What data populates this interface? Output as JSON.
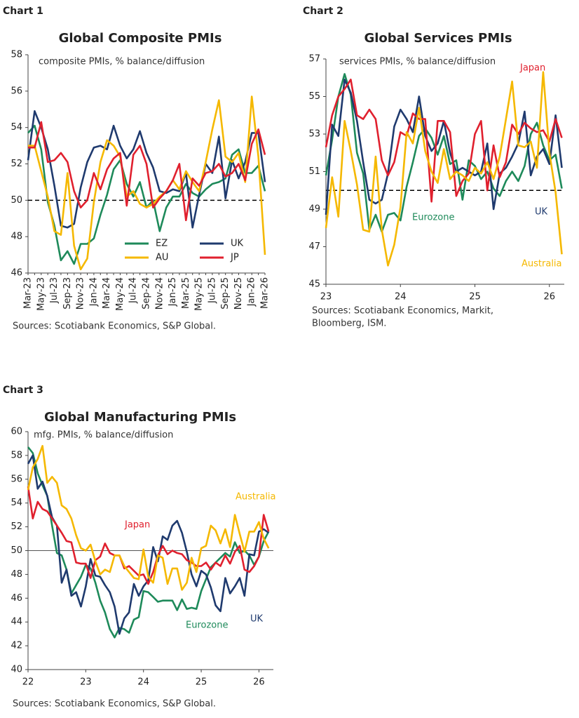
{
  "chart_data": [
    {
      "type": "line",
      "label": "Chart 1",
      "title": "Global Composite PMIs",
      "subtitle": "composite PMIs, % balance/diffusion",
      "source": [
        "Sources: Scotiabank Economics, S&P Global."
      ],
      "categories": [
        "Mar-23",
        null,
        "May-23",
        null,
        "Jul-23",
        null,
        "Sep-23",
        null,
        "Nov-23",
        null,
        "Jan-24",
        null,
        "Mar-24",
        null,
        "May-24",
        null,
        "Jul-24",
        null,
        "Sep-24",
        null,
        "Nov-24",
        null,
        "Jan-25",
        null,
        "Mar-25",
        null,
        "May-25",
        null,
        "Jul-25",
        null,
        "Sep-25",
        null,
        "Nov-25",
        null,
        "Jan-26",
        null,
        "Mar-26"
      ],
      "ylim": [
        46,
        58
      ],
      "yticks": [
        46,
        48,
        50,
        52,
        54,
        56,
        58
      ],
      "reference_line": 50,
      "reference_dashed": true,
      "legend": "lower center",
      "series": [
        {
          "name": "EZ",
          "color": "#1e8a5a",
          "values": [
            53.7,
            54.1,
            52.8,
            49.9,
            48.6,
            46.7,
            47.2,
            46.5,
            47.6,
            47.6,
            47.9,
            49.2,
            50.3,
            51.7,
            52.2,
            50.9,
            50.2,
            51.0,
            49.6,
            50.0,
            48.3,
            49.6,
            50.2,
            50.2,
            50.9,
            50.4,
            50.2,
            50.6,
            50.9,
            51.0,
            51.2,
            52.5,
            52.8,
            51.5,
            51.5,
            51.9,
            50.5
          ]
        },
        {
          "name": "UK",
          "color": "#1f3a6e",
          "values": [
            52.2,
            54.9,
            54.0,
            52.8,
            50.8,
            48.6,
            48.5,
            48.7,
            50.7,
            52.1,
            52.9,
            53.0,
            52.8,
            54.1,
            53.0,
            52.3,
            52.8,
            53.8,
            52.6,
            51.8,
            50.5,
            50.4,
            50.6,
            50.5,
            51.5,
            48.5,
            50.3,
            52.0,
            51.5,
            53.5,
            50.1,
            52.2,
            51.2,
            52.1,
            53.7,
            53.7,
            51.0
          ]
        },
        {
          "name": "AU",
          "color": "#f5b800",
          "values": [
            53.0,
            53.0,
            51.6,
            50.2,
            48.3,
            48.1,
            51.5,
            47.5,
            46.2,
            46.8,
            49.9,
            52.1,
            53.3,
            53.0,
            52.4,
            50.2,
            50.5,
            49.8,
            49.6,
            49.8,
            50.2,
            50.5,
            51.1,
            50.6,
            51.6,
            51.0,
            50.5,
            52.1,
            53.9,
            55.5,
            52.4,
            52.1,
            52.6,
            51.0,
            55.7,
            52.4,
            47.0
          ]
        },
        {
          "name": "JP",
          "color": "#e0202e",
          "values": [
            52.9,
            52.9,
            54.3,
            52.1,
            52.2,
            52.6,
            52.1,
            50.5,
            49.6,
            50.0,
            51.5,
            50.6,
            51.7,
            52.3,
            52.6,
            49.7,
            52.5,
            53.0,
            52.0,
            49.6,
            50.1,
            50.5,
            51.1,
            52.0,
            48.9,
            51.2,
            50.8,
            51.5,
            51.6,
            52.0,
            51.3,
            51.5,
            52.0,
            51.1,
            53.1,
            53.9,
            52.5
          ]
        }
      ]
    },
    {
      "type": "line",
      "label": "Chart 2",
      "title": "Global Services PMIs",
      "subtitle": "services PMIs, % balance/diffusion",
      "source": [
        "Sources: Scotiabank Economics, Markit,",
        "Bloomberg, ISM."
      ],
      "x": [
        23,
        23.083,
        23.167,
        23.25,
        23.333,
        23.417,
        23.5,
        23.583,
        23.667,
        23.75,
        23.833,
        23.917,
        24,
        24.083,
        24.167,
        24.25,
        24.333,
        24.417,
        24.5,
        24.583,
        24.667,
        24.75,
        24.833,
        24.917,
        25,
        25.083,
        25.167,
        25.25,
        25.333,
        25.417,
        25.5,
        25.583,
        25.667,
        25.75,
        25.833,
        25.917,
        26,
        26.083,
        26.167
      ],
      "xlim": [
        23,
        26.2
      ],
      "xticks": [
        23,
        24,
        25,
        26
      ],
      "ylim": [
        45,
        57
      ],
      "yticks": [
        45,
        47,
        49,
        51,
        53,
        55,
        57
      ],
      "reference_line": 50,
      "reference_dashed": true,
      "series": [
        {
          "name": "Eurozone",
          "color": "#1e8a5a",
          "values": [
            50.8,
            52.7,
            55.0,
            56.2,
            55.1,
            52.0,
            50.9,
            47.9,
            48.7,
            47.8,
            48.7,
            48.8,
            48.4,
            50.2,
            51.5,
            52.9,
            53.3,
            52.8,
            51.9,
            52.9,
            51.4,
            51.6,
            49.5,
            51.6,
            51.3,
            50.6,
            51.0,
            50.1,
            49.7,
            50.5,
            51.0,
            50.5,
            51.3,
            53.0,
            53.6,
            52.4,
            51.6,
            51.9,
            50.1
          ]
        },
        {
          "name": "UK",
          "color": "#1f3a6e",
          "values": [
            48.7,
            53.5,
            52.9,
            55.9,
            55.2,
            53.7,
            51.5,
            49.5,
            49.3,
            49.5,
            50.9,
            53.4,
            54.3,
            53.8,
            53.1,
            55.0,
            52.9,
            52.1,
            52.5,
            53.7,
            52.0,
            51.0,
            51.2,
            51.0,
            50.8,
            51.0,
            52.5,
            49.0,
            50.9,
            51.2,
            51.8,
            52.5,
            54.2,
            50.8,
            51.8,
            52.2,
            51.4,
            54.0,
            51.2
          ]
        },
        {
          "name": "Japan",
          "color": "#e0202e",
          "values": [
            52.3,
            54.0,
            55.0,
            55.4,
            55.9,
            54.0,
            53.8,
            54.3,
            53.8,
            51.6,
            50.8,
            51.5,
            53.1,
            52.9,
            54.1,
            53.8,
            53.8,
            49.4,
            53.7,
            53.7,
            53.1,
            49.7,
            50.5,
            50.9,
            53.0,
            53.7,
            50.0,
            52.4,
            50.7,
            51.5,
            53.5,
            53.0,
            53.6,
            53.3,
            53.1,
            53.2,
            52.6,
            53.8,
            52.8
          ]
        },
        {
          "name": "Australia",
          "color": "#f5b800",
          "values": [
            48.0,
            50.7,
            48.6,
            53.7,
            52.1,
            50.3,
            47.9,
            47.8,
            51.8,
            47.9,
            46.0,
            47.1,
            49.1,
            53.1,
            52.5,
            54.4,
            52.1,
            51.0,
            50.4,
            52.2,
            50.6,
            51.0,
            50.8,
            50.5,
            51.2,
            50.9,
            51.5,
            50.6,
            51.8,
            53.8,
            55.8,
            52.4,
            52.3,
            52.6,
            51.2,
            56.3,
            52.0,
            49.9,
            46.6
          ]
        }
      ]
    },
    {
      "type": "line",
      "label": "Chart 3",
      "title": "Global Manufacturing PMIs",
      "subtitle": "mfg. PMIs, % balance/diffusion",
      "source": [
        "Sources: Scotiabank Economics, S&P Global."
      ],
      "x": [
        22,
        22.083,
        22.167,
        22.25,
        22.333,
        22.417,
        22.5,
        22.583,
        22.667,
        22.75,
        22.833,
        22.917,
        23,
        23.083,
        23.167,
        23.25,
        23.333,
        23.417,
        23.5,
        23.583,
        23.667,
        23.75,
        23.833,
        23.917,
        24,
        24.083,
        24.167,
        24.25,
        24.333,
        24.417,
        24.5,
        24.583,
        24.667,
        24.75,
        24.833,
        24.917,
        25,
        25.083,
        25.167,
        25.25,
        25.333,
        25.417,
        25.5,
        25.583,
        25.667,
        25.75,
        25.833,
        25.917,
        26,
        26.083,
        26.167
      ],
      "xlim": [
        22,
        26.25
      ],
      "xticks": [
        22,
        23,
        24,
        25,
        26
      ],
      "ylim": [
        40,
        60
      ],
      "yticks": [
        40,
        42,
        44,
        46,
        48,
        50,
        52,
        54,
        56,
        58,
        60
      ],
      "reference_line": 50,
      "reference_dashed": false,
      "series": [
        {
          "name": "Eurozone",
          "color": "#1e8a5a",
          "values": [
            58.7,
            58.2,
            56.5,
            55.5,
            54.6,
            52.1,
            49.8,
            49.6,
            48.4,
            46.4,
            47.1,
            47.8,
            48.8,
            48.5,
            47.3,
            45.8,
            44.8,
            43.4,
            42.7,
            43.5,
            43.4,
            43.1,
            44.2,
            44.4,
            46.6,
            46.5,
            46.1,
            45.7,
            45.8,
            45.8,
            45.8,
            45.0,
            45.9,
            45.1,
            45.2,
            45.1,
            46.6,
            47.6,
            48.6,
            49.0,
            49.4,
            49.8,
            49.5,
            50.7,
            49.8,
            50.0,
            49.6,
            48.8,
            49.5,
            50.8,
            51.6
          ]
        },
        {
          "name": "UK",
          "color": "#1f3a6e",
          "values": [
            57.3,
            58.0,
            55.2,
            55.8,
            54.6,
            52.8,
            52.1,
            47.3,
            48.4,
            46.2,
            46.5,
            45.3,
            47.0,
            49.3,
            47.9,
            47.8,
            47.1,
            46.5,
            45.3,
            43.0,
            44.3,
            44.8,
            47.2,
            46.2,
            47.0,
            47.5,
            50.3,
            49.1,
            51.2,
            50.9,
            52.1,
            52.5,
            51.5,
            49.9,
            48.0,
            47.0,
            48.3,
            48.0,
            46.9,
            45.4,
            44.9,
            47.7,
            46.4,
            47.0,
            47.7,
            46.2,
            49.7,
            49.6,
            51.6,
            51.8,
            51.5
          ]
        },
        {
          "name": "Japan",
          "color": "#e0202e",
          "values": [
            55.4,
            52.7,
            54.1,
            53.5,
            53.3,
            52.7,
            52.1,
            51.5,
            50.8,
            50.7,
            49.0,
            48.9,
            48.9,
            47.7,
            49.2,
            49.5,
            50.6,
            49.8,
            49.6,
            49.6,
            48.5,
            48.7,
            48.3,
            47.9,
            48.0,
            47.2,
            48.2,
            49.6,
            50.4,
            49.7,
            50.0,
            49.8,
            49.7,
            49.2,
            49.0,
            48.7,
            48.7,
            49.0,
            48.4,
            49.0,
            48.7,
            49.6,
            48.9,
            49.9,
            50.4,
            48.4,
            48.2,
            48.7,
            49.5,
            53.0,
            51.6
          ]
        },
        {
          "name": "Australia",
          "color": "#f5b800",
          "values": [
            55.1,
            57.0,
            57.7,
            58.8,
            55.7,
            56.2,
            55.7,
            53.8,
            53.5,
            52.7,
            51.3,
            50.2,
            50.0,
            50.5,
            49.1,
            48.0,
            48.4,
            48.2,
            49.6,
            49.6,
            48.7,
            48.2,
            47.7,
            47.6,
            50.1,
            47.8,
            47.3,
            49.6,
            49.4,
            47.2,
            48.5,
            48.5,
            46.7,
            47.3,
            49.4,
            48.2,
            50.2,
            50.4,
            52.1,
            51.7,
            50.6,
            51.8,
            50.3,
            53.0,
            51.4,
            49.9,
            51.6,
            51.6,
            52.4,
            51.0,
            50.2
          ]
        }
      ]
    }
  ]
}
